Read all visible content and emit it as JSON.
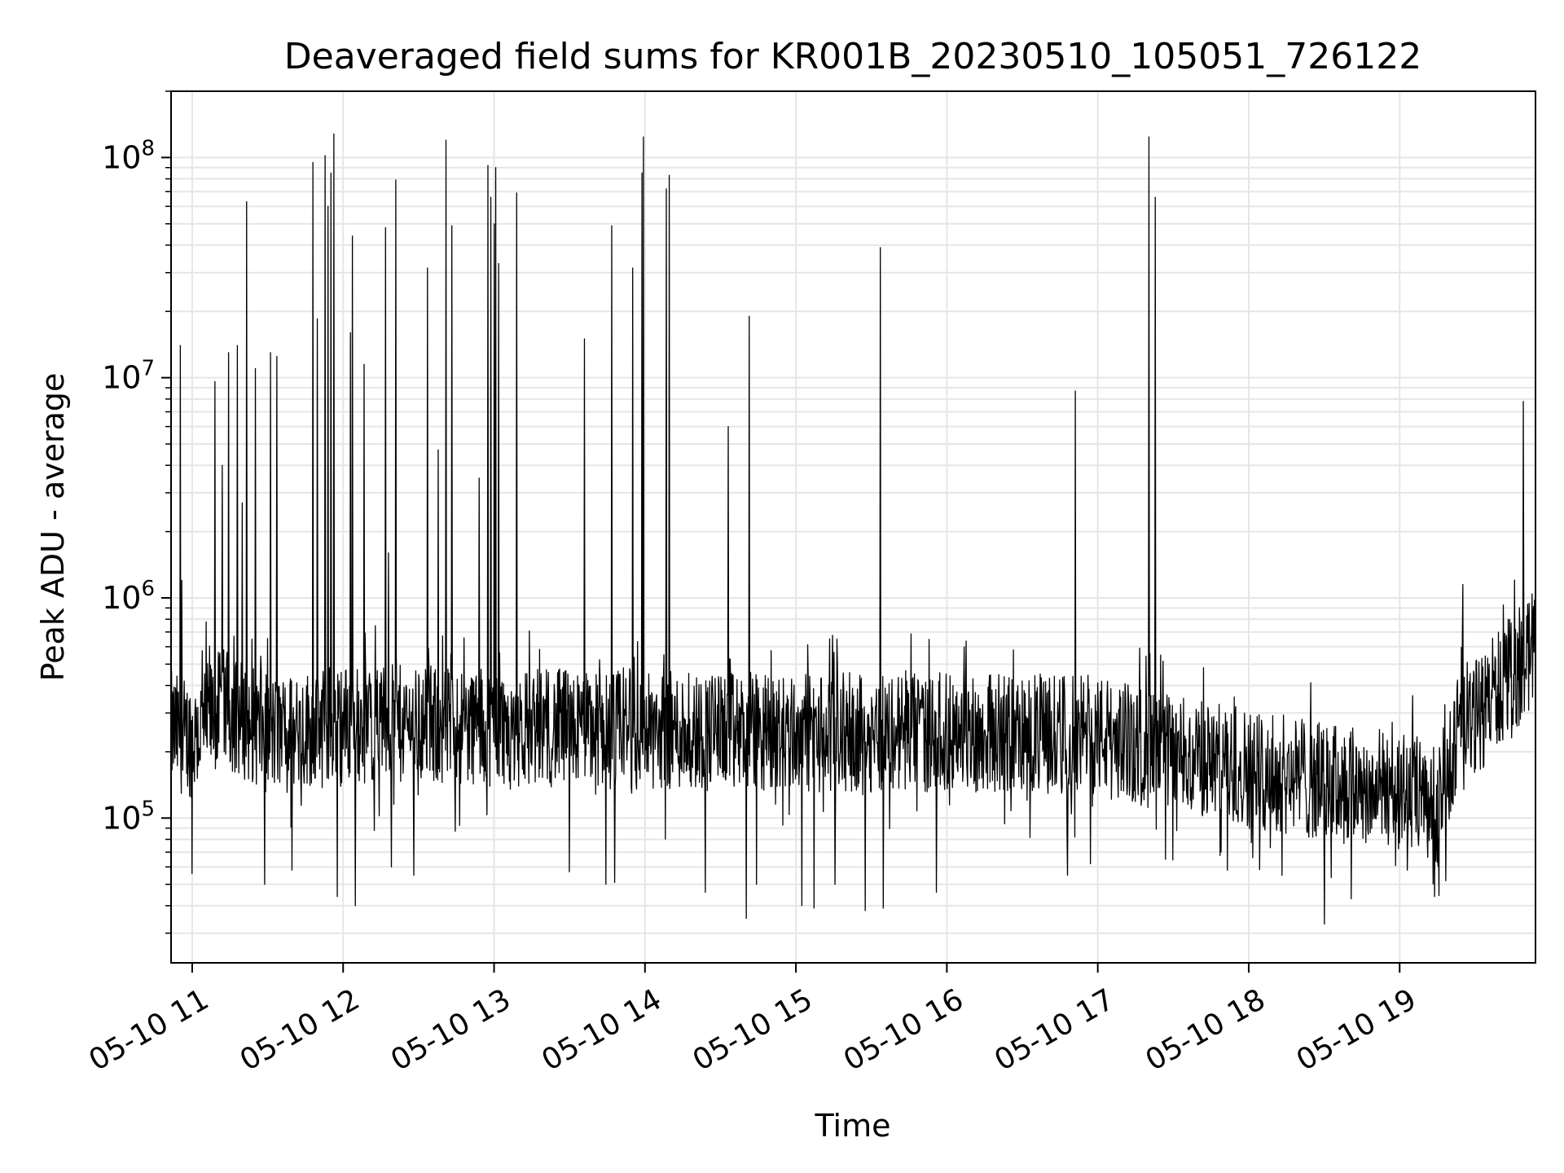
{
  "chart_data": {
    "type": "line",
    "title": "Deaveraged field sums for KR001B_20230510_105051_726122",
    "xlabel": "Time",
    "ylabel": "Peak ADU - average",
    "yscale": "log",
    "grid": true,
    "ylim": [
      22000,
      200000000
    ],
    "x_hour_range": [
      10.86,
      19.9
    ],
    "x_ticks": [
      {
        "label": "05-10 11",
        "hour": 11
      },
      {
        "label": "05-10 12",
        "hour": 12
      },
      {
        "label": "05-10 13",
        "hour": 13
      },
      {
        "label": "05-10 14",
        "hour": 14
      },
      {
        "label": "05-10 15",
        "hour": 15
      },
      {
        "label": "05-10 16",
        "hour": 16
      },
      {
        "label": "05-10 17",
        "hour": 17
      },
      {
        "label": "05-10 18",
        "hour": 18
      },
      {
        "label": "05-10 19",
        "hour": 19
      }
    ],
    "y_ticks": [
      {
        "base": "10",
        "exp": "5",
        "value": 100000
      },
      {
        "base": "10",
        "exp": "6",
        "value": 1000000
      },
      {
        "base": "10",
        "exp": "7",
        "value": 10000000
      },
      {
        "base": "10",
        "exp": "8",
        "value": 100000000
      }
    ],
    "baseline": [
      [
        10.86,
        250000
      ],
      [
        11.0,
        230000
      ],
      [
        11.2,
        320000
      ],
      [
        11.5,
        240000
      ],
      [
        12.0,
        270000
      ],
      [
        13.0,
        260000
      ],
      [
        14.0,
        250000
      ],
      [
        15.0,
        245000
      ],
      [
        16.0,
        245000
      ],
      [
        17.0,
        240000
      ],
      [
        17.4,
        200000
      ],
      [
        18.0,
        170000
      ],
      [
        18.5,
        145000
      ],
      [
        19.0,
        135000
      ],
      [
        19.25,
        110000
      ],
      [
        19.35,
        200000
      ],
      [
        19.6,
        350000
      ],
      [
        19.9,
        600000
      ]
    ],
    "spikes": [
      [
        10.92,
        14000000
      ],
      [
        10.93,
        1200000
      ],
      [
        11.15,
        9600000
      ],
      [
        11.2,
        4000000
      ],
      [
        11.24,
        13000000
      ],
      [
        11.3,
        14000000
      ],
      [
        11.33,
        2700000
      ],
      [
        11.36,
        63000000
      ],
      [
        11.42,
        11000000
      ],
      [
        11.52,
        13000000
      ],
      [
        11.56,
        12500000
      ],
      [
        11.8,
        95000000
      ],
      [
        11.83,
        18500000
      ],
      [
        11.88,
        102000000
      ],
      [
        11.9,
        60000000
      ],
      [
        11.92,
        85000000
      ],
      [
        11.94,
        128000000
      ],
      [
        12.05,
        16000000
      ],
      [
        12.06,
        44000000
      ],
      [
        12.14,
        11500000
      ],
      [
        12.28,
        48000000
      ],
      [
        12.3,
        1600000
      ],
      [
        12.35,
        79000000
      ],
      [
        12.56,
        31500000
      ],
      [
        12.63,
        4700000
      ],
      [
        12.68,
        120000000
      ],
      [
        12.72,
        49000000
      ],
      [
        12.9,
        3500000
      ],
      [
        12.96,
        92000000
      ],
      [
        12.98,
        66000000
      ],
      [
        13.0,
        50000000
      ],
      [
        13.01,
        90000000
      ],
      [
        13.03,
        33000000
      ],
      [
        13.15,
        69000000
      ],
      [
        13.6,
        15000000
      ],
      [
        13.78,
        49000000
      ],
      [
        13.92,
        31500000
      ],
      [
        13.98,
        85000000
      ],
      [
        13.99,
        124000000
      ],
      [
        14.14,
        72000000
      ],
      [
        14.16,
        83000000
      ],
      [
        14.55,
        6000000
      ],
      [
        14.69,
        19000000
      ],
      [
        15.56,
        39000000
      ],
      [
        16.85,
        8700000
      ],
      [
        17.34,
        124000000
      ],
      [
        17.38,
        66000000
      ],
      [
        19.42,
        1150000
      ],
      [
        19.82,
        7800000
      ]
    ],
    "lows": [
      [
        11.0,
        56000
      ],
      [
        11.48,
        50000
      ],
      [
        11.66,
        58000
      ],
      [
        11.96,
        44000
      ],
      [
        12.08,
        40000
      ],
      [
        12.32,
        60000
      ],
      [
        12.47,
        55000
      ],
      [
        13.5,
        57000
      ],
      [
        13.74,
        50000
      ],
      [
        13.8,
        51000
      ],
      [
        14.4,
        46000
      ],
      [
        14.67,
        35000
      ],
      [
        14.74,
        50000
      ],
      [
        15.04,
        40000
      ],
      [
        15.12,
        39000
      ],
      [
        15.26,
        50000
      ],
      [
        15.46,
        38000
      ],
      [
        15.58,
        39000
      ],
      [
        15.93,
        46000
      ],
      [
        16.8,
        55000
      ],
      [
        16.95,
        62000
      ],
      [
        17.45,
        65000
      ],
      [
        17.86,
        58000
      ],
      [
        18.22,
        55000
      ],
      [
        18.5,
        33000
      ],
      [
        18.68,
        43000
      ],
      [
        19.05,
        58000
      ],
      [
        19.23,
        44000
      ]
    ]
  }
}
